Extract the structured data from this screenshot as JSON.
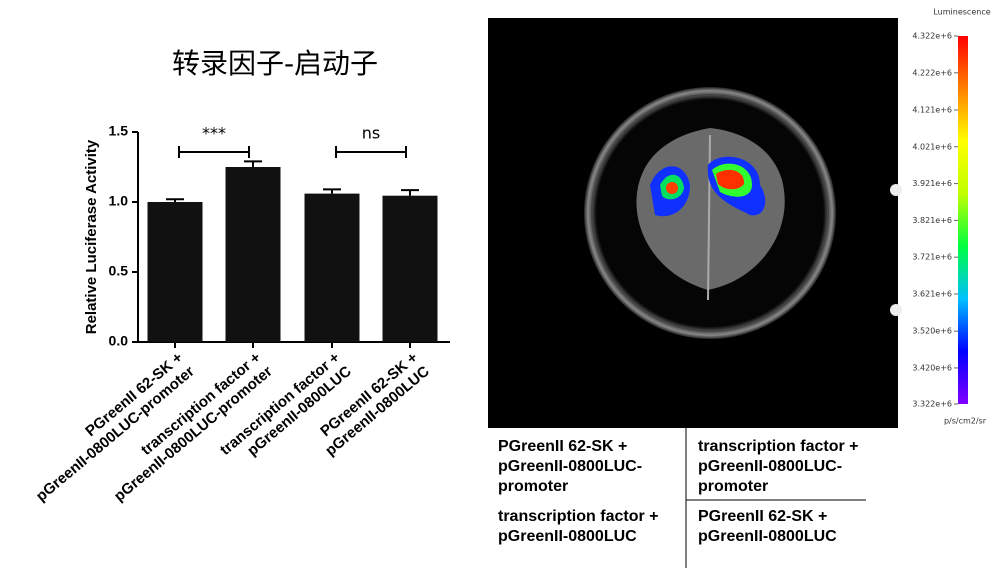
{
  "chart_data": [
    {
      "type": "bar",
      "title": "转录因子-启动子",
      "y_label": "Relative Luciferase Activity",
      "categories": [
        [
          "PGreenII 62-SK  +",
          "pGreenII-0800LUC-promoter"
        ],
        [
          "transcription factor  +",
          "pGreenII-0800LUC-promoter"
        ],
        [
          "transcription factor  +",
          "pGreenII-0800LUC"
        ],
        [
          "PGreenII 62-SK  +",
          "pGreenII-0800LUC"
        ]
      ],
      "values": [
        1.0,
        1.25,
        1.06,
        1.045
      ],
      "errors": [
        0.02,
        0.04,
        0.03,
        0.04
      ],
      "color": "#111111",
      "ylim": [
        0,
        1.5
      ],
      "yticks": [
        {
          "value": 0,
          "label": "0.0"
        },
        {
          "value": 0.5,
          "label": "0.5"
        },
        {
          "value": 1,
          "label": "1.0"
        },
        {
          "value": 1.5,
          "label": "1.5"
        }
      ],
      "annotations": [
        "***",
        "ns"
      ]
    },
    {
      "type": "colorbar",
      "title": "Luminescence",
      "unit": "p/s/cm2/sr",
      "ylim": [
        3322000,
        4322000
      ],
      "colors": [
        "#8000ff",
        "#0000ff",
        "#00c0ff",
        "#00ff40",
        "#c0ff00",
        "#ffff00",
        "#ff8000",
        "#ff0000"
      ],
      "yticks": [
        {
          "value": 4322000,
          "label": "4.322e+6"
        },
        {
          "value": 4222000,
          "label": "4.222e+6"
        },
        {
          "value": 4121000,
          "label": "4.121e+6"
        },
        {
          "value": 4021000,
          "label": "4.021e+6"
        },
        {
          "value": 3921000,
          "label": "3.921e+6"
        },
        {
          "value": 3821000,
          "label": "3.821e+6"
        },
        {
          "value": 3721000,
          "label": "3.721e+6"
        },
        {
          "value": 3621000,
          "label": "3.621e+6"
        },
        {
          "value": 3520000,
          "label": "3.520e+6"
        },
        {
          "value": 3420000,
          "label": "3.420e+6"
        },
        {
          "value": 3322000,
          "label": "3.322e+6"
        }
      ]
    }
  ],
  "image_labels": [
    [
      "PGreenII 62-SK  +",
      "pGreenII-0800LUC-",
      "promoter"
    ],
    [
      "transcription factor  +",
      "pGreenII-0800LUC-",
      "promoter"
    ],
    [
      "transcription factor  +",
      "pGreenII-0800LUC"
    ],
    [
      "PGreenII 62-SK  +",
      "pGreenII-0800LUC"
    ]
  ]
}
